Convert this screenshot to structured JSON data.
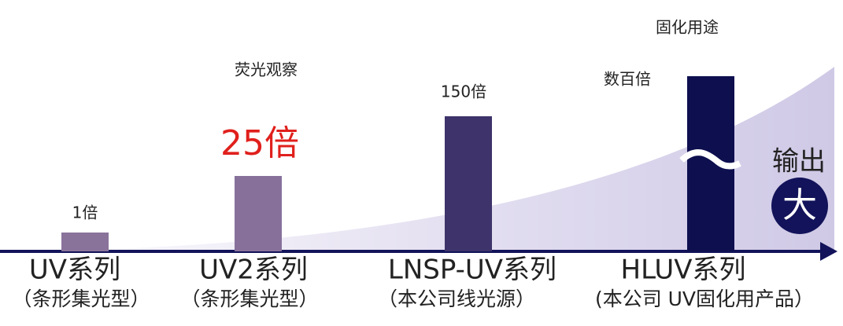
{
  "items": [
    {
      "value_label": "1倍",
      "name": "UV系列",
      "note": "（条形集光型）"
    },
    {
      "value_label": "25倍",
      "annotation": "荧光观察",
      "name": "UV2系列",
      "note": "（条形集光型）"
    },
    {
      "value_label": "150倍",
      "name": "LNSP-UV系列",
      "note": "（本公司线光源）"
    },
    {
      "value_label": "数百倍",
      "annotation": "固化用途",
      "name": "HLUV系列",
      "note": "(本公司 UV固化用产品）"
    }
  ],
  "output": {
    "label": "输出",
    "badge": "大"
  }
}
